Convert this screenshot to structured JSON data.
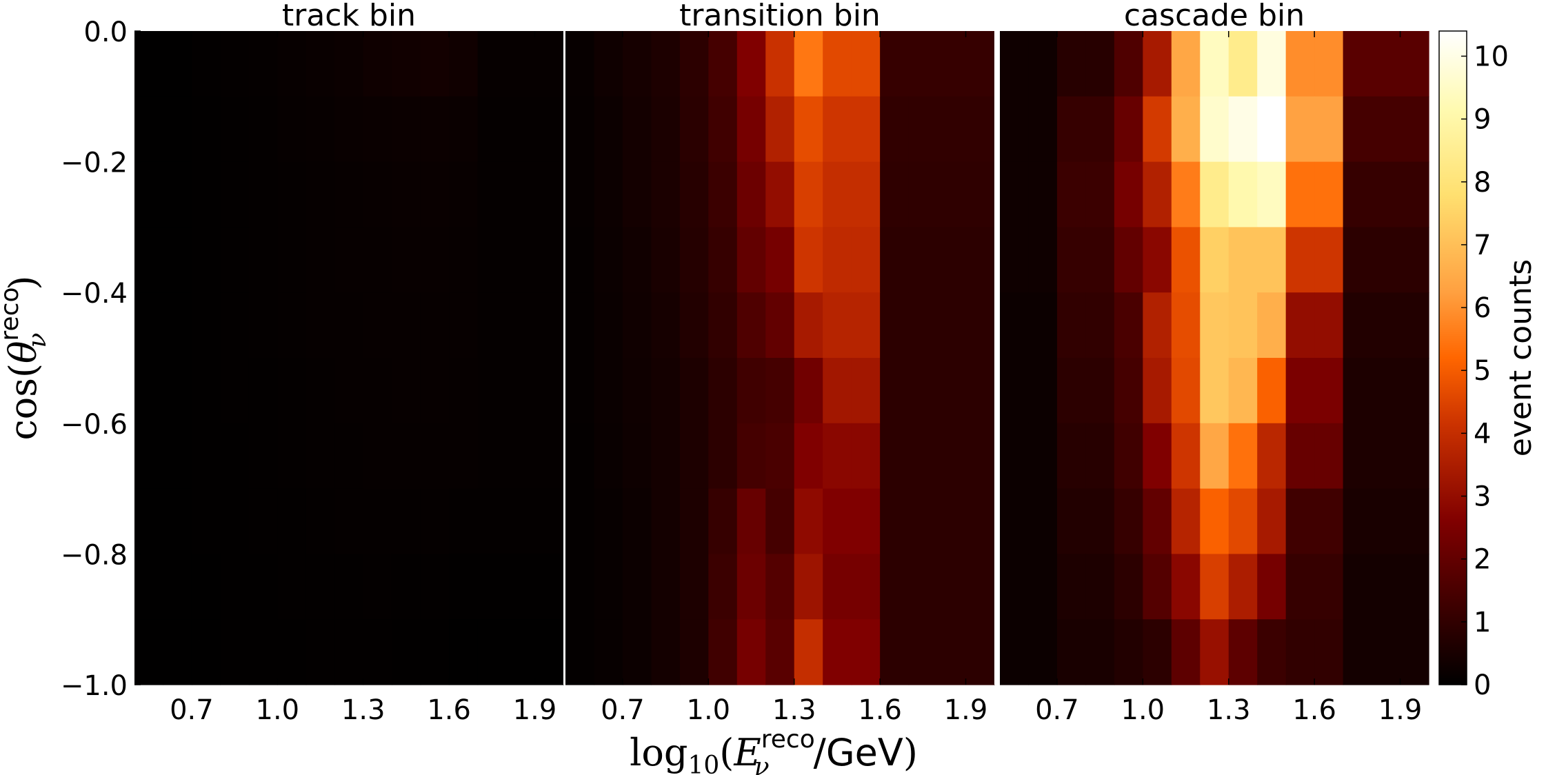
{
  "chart_data": {
    "type": "heatmap",
    "panels": [
      {
        "title": "track bin",
        "values": [
          [
            0.02,
            0.03,
            0.06,
            0.08,
            0.1,
            0.15,
            0.18,
            0.22,
            0.3,
            0.35,
            0.38,
            0.32,
            0.12
          ],
          [
            0.02,
            0.03,
            0.05,
            0.07,
            0.09,
            0.12,
            0.15,
            0.18,
            0.2,
            0.22,
            0.22,
            0.2,
            0.1
          ],
          [
            0.02,
            0.03,
            0.05,
            0.06,
            0.08,
            0.1,
            0.12,
            0.15,
            0.16,
            0.18,
            0.18,
            0.16,
            0.1
          ],
          [
            0.02,
            0.03,
            0.05,
            0.06,
            0.08,
            0.1,
            0.12,
            0.14,
            0.15,
            0.16,
            0.16,
            0.15,
            0.1
          ],
          [
            0.02,
            0.03,
            0.05,
            0.06,
            0.08,
            0.1,
            0.12,
            0.13,
            0.14,
            0.15,
            0.15,
            0.14,
            0.1
          ],
          [
            0.02,
            0.03,
            0.04,
            0.06,
            0.07,
            0.09,
            0.11,
            0.12,
            0.13,
            0.14,
            0.14,
            0.13,
            0.1
          ],
          [
            0.02,
            0.03,
            0.04,
            0.05,
            0.07,
            0.08,
            0.1,
            0.11,
            0.12,
            0.12,
            0.13,
            0.12,
            0.1
          ],
          [
            0.02,
            0.03,
            0.04,
            0.05,
            0.06,
            0.07,
            0.09,
            0.1,
            0.1,
            0.1,
            0.11,
            0.09,
            0.08
          ],
          [
            0.02,
            0.02,
            0.03,
            0.04,
            0.05,
            0.06,
            0.07,
            0.07,
            0.08,
            0.07,
            0.06,
            0.05,
            0.05
          ],
          [
            0.02,
            0.02,
            0.03,
            0.04,
            0.05,
            0.05,
            0.06,
            0.06,
            0.06,
            0.05,
            0.04,
            0.03,
            0.03
          ]
        ]
      },
      {
        "title": "transition bin",
        "values": [
          [
            0.15,
            0.3,
            0.45,
            0.6,
            0.9,
            1.4,
            2.6,
            4.1,
            5.5,
            4.6,
            4.6,
            1.1,
            1.1
          ],
          [
            0.12,
            0.25,
            0.4,
            0.55,
            0.85,
            1.3,
            2.4,
            3.6,
            4.7,
            4.2,
            4.2,
            1.0,
            1.0
          ],
          [
            0.12,
            0.25,
            0.4,
            0.55,
            0.8,
            1.2,
            2.2,
            3.0,
            4.4,
            4.0,
            4.0,
            0.95,
            0.95
          ],
          [
            0.1,
            0.22,
            0.35,
            0.5,
            0.75,
            1.1,
            2.0,
            2.4,
            4.2,
            3.9,
            3.9,
            0.9,
            0.9
          ],
          [
            0.1,
            0.2,
            0.32,
            0.45,
            0.7,
            1.0,
            1.6,
            2.0,
            3.4,
            3.7,
            3.7,
            0.9,
            0.9
          ],
          [
            0.1,
            0.2,
            0.3,
            0.4,
            0.6,
            0.9,
            1.3,
            1.4,
            2.3,
            3.3,
            3.3,
            0.9,
            0.9
          ],
          [
            0.08,
            0.18,
            0.28,
            0.4,
            0.6,
            0.9,
            1.4,
            1.5,
            2.6,
            2.8,
            2.8,
            0.9,
            0.9
          ],
          [
            0.08,
            0.15,
            0.25,
            0.4,
            0.6,
            1.1,
            2.1,
            1.4,
            2.9,
            2.6,
            2.6,
            0.9,
            0.9
          ],
          [
            0.08,
            0.15,
            0.25,
            0.4,
            0.6,
            1.2,
            2.2,
            1.7,
            3.2,
            2.4,
            2.4,
            0.9,
            0.9
          ],
          [
            0.08,
            0.15,
            0.25,
            0.4,
            0.6,
            1.3,
            2.4,
            1.8,
            4.0,
            2.6,
            2.6,
            0.9,
            0.9
          ]
        ]
      },
      {
        "title": "cascade bin",
        "values": [
          [
            0.3,
            0.3,
            0.8,
            0.8,
            1.6,
            3.4,
            6.4,
            9.4,
            8.4,
            9.9,
            5.9,
            5.9,
            1.8
          ],
          [
            0.3,
            0.3,
            1.1,
            1.1,
            2.1,
            4.3,
            6.6,
            9.6,
            10.0,
            10.4,
            6.3,
            6.3,
            1.4
          ],
          [
            0.3,
            0.3,
            1.2,
            1.2,
            2.4,
            3.6,
            5.6,
            8.4,
            9.1,
            9.4,
            5.4,
            5.4,
            1.1
          ],
          [
            0.3,
            0.3,
            1.1,
            1.1,
            2.0,
            2.8,
            4.8,
            7.4,
            7.1,
            7.1,
            4.2,
            4.2,
            0.9
          ],
          [
            0.25,
            0.25,
            1.0,
            1.0,
            1.5,
            3.6,
            4.7,
            7.2,
            7.1,
            6.6,
            3.0,
            3.0,
            0.7
          ],
          [
            0.25,
            0.25,
            0.9,
            0.9,
            1.4,
            3.4,
            4.6,
            7.2,
            6.8,
            5.1,
            2.5,
            2.5,
            0.6
          ],
          [
            0.25,
            0.25,
            0.8,
            0.8,
            1.3,
            2.6,
            4.2,
            6.4,
            5.4,
            3.8,
            2.1,
            2.1,
            0.6
          ],
          [
            0.25,
            0.25,
            0.7,
            0.7,
            1.1,
            2.0,
            3.7,
            5.1,
            4.6,
            3.4,
            1.3,
            1.3,
            0.5
          ],
          [
            0.25,
            0.25,
            0.6,
            0.6,
            0.9,
            1.7,
            2.8,
            4.4,
            3.5,
            2.4,
            1.1,
            1.1,
            0.4
          ],
          [
            0.25,
            0.25,
            0.5,
            0.5,
            0.7,
            0.9,
            1.9,
            3.1,
            1.9,
            1.2,
            1.0,
            1.0,
            0.4
          ]
        ]
      }
    ],
    "rows_top_to_bottom": "cos(theta) from 0.0 (top) to -1.0 (bottom), 10 rows of 0.1",
    "x_edges": [
      0.5,
      0.6,
      0.7,
      0.8,
      0.9,
      1.0,
      1.1,
      1.2,
      1.3,
      1.4,
      1.5,
      1.6,
      1.7,
      2.0
    ],
    "y_edges": [
      -1.0,
      -0.9,
      -0.8,
      -0.7,
      -0.6,
      -0.5,
      -0.4,
      -0.3,
      -0.2,
      -0.1,
      0.0
    ],
    "xlim": [
      0.5,
      2.0
    ],
    "ylim": [
      -1.0,
      0.0
    ],
    "x_ticks": [
      0.7,
      1.0,
      1.3,
      1.6,
      1.9
    ],
    "x_tick_labels": [
      "0.7",
      "1.0",
      "1.3",
      "1.6",
      "1.9"
    ],
    "y_ticks": [
      0.0,
      -0.2,
      -0.4,
      -0.6,
      -0.8,
      -1.0
    ],
    "y_tick_labels": [
      "0.0",
      "−0.2",
      "−0.4",
      "−0.6",
      "−0.8",
      "−1.0"
    ],
    "xlabel": "log₁₀(Eν reco / GeV)",
    "ylabel": "cos(θν reco)",
    "xlabel_parts": {
      "func": "log",
      "sub": "10",
      "var": "E",
      "var_sub": "ν",
      "sup": "reco",
      "unit": "/GeV"
    },
    "ylabel_parts": {
      "func": "cos",
      "var": "θ",
      "var_sub": "ν",
      "sup": "reco"
    },
    "colorbar": {
      "label": "event counts",
      "min": 0,
      "max": 10.4,
      "ticks": [
        0,
        1,
        2,
        3,
        4,
        5,
        6,
        7,
        8,
        9,
        10
      ],
      "tick_labels": [
        "0",
        "1",
        "2",
        "3",
        "4",
        "5",
        "6",
        "7",
        "8",
        "9",
        "10"
      ],
      "colormap": "afmhot",
      "stops": [
        [
          0.0,
          "#000000"
        ],
        [
          0.1,
          "#330000"
        ],
        [
          0.25,
          "#800000"
        ],
        [
          0.4,
          "#cc3300"
        ],
        [
          0.5,
          "#ff6600"
        ],
        [
          0.6,
          "#ffa040"
        ],
        [
          0.75,
          "#ffe070"
        ],
        [
          0.88,
          "#fffab0"
        ],
        [
          1.0,
          "#ffffff"
        ]
      ]
    },
    "grid": false
  }
}
